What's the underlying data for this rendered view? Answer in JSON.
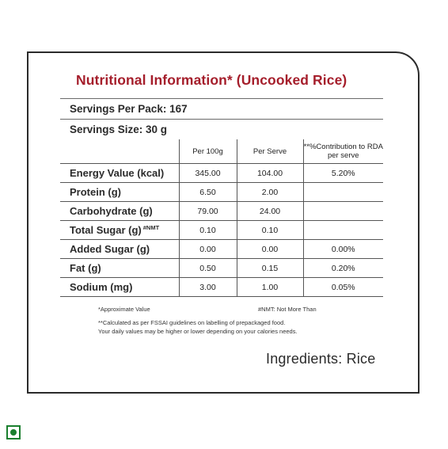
{
  "label": {
    "title": "Nutritional Information* (Uncooked Rice)",
    "servings_per_pack": "Servings Per Pack: 167",
    "serving_size": "Servings Size: 30 g",
    "columns": [
      "",
      "Per 100g",
      "Per Serve",
      "**%Contribution to RDA per serve"
    ],
    "rows": [
      {
        "name": "Energy Value (kcal)",
        "per100g": "345.00",
        "perServe": "104.00",
        "rda": "5.20%"
      },
      {
        "name": "Protein (g)",
        "per100g": "6.50",
        "perServe": "2.00",
        "rda": ""
      },
      {
        "name": "Carbohydrate (g)",
        "per100g": "79.00",
        "perServe": "24.00",
        "rda": ""
      },
      {
        "name": "Total Sugar (g)",
        "mark": "#NMT",
        "per100g": "0.10",
        "perServe": "0.10",
        "rda": ""
      },
      {
        "name": "Added Sugar (g)",
        "per100g": "0.00",
        "perServe": "0.00",
        "rda": "0.00%"
      },
      {
        "name": "Fat (g)",
        "per100g": "0.50",
        "perServe": "0.15",
        "rda": "0.20%"
      },
      {
        "name": "Sodium (mg)",
        "per100g": "3.00",
        "perServe": "1.00",
        "rda": "0.05%"
      }
    ],
    "footnotes": {
      "approx": "*Approximate Value",
      "nmt": "#NMT: Not More Than",
      "fssai_line1": "**Calculated as per FSSAI guidelines on labelling of prepackaged food.",
      "fssai_line2": "Your daily values may be higher or lower depending on your calories needs."
    },
    "ingredients": "Ingredients: Rice"
  },
  "colors": {
    "title": "#a51e2b",
    "veg_mark": "#1a7f2e",
    "border": "#2b2b2b"
  },
  "icons": {
    "veg": "veg-mark-icon"
  }
}
